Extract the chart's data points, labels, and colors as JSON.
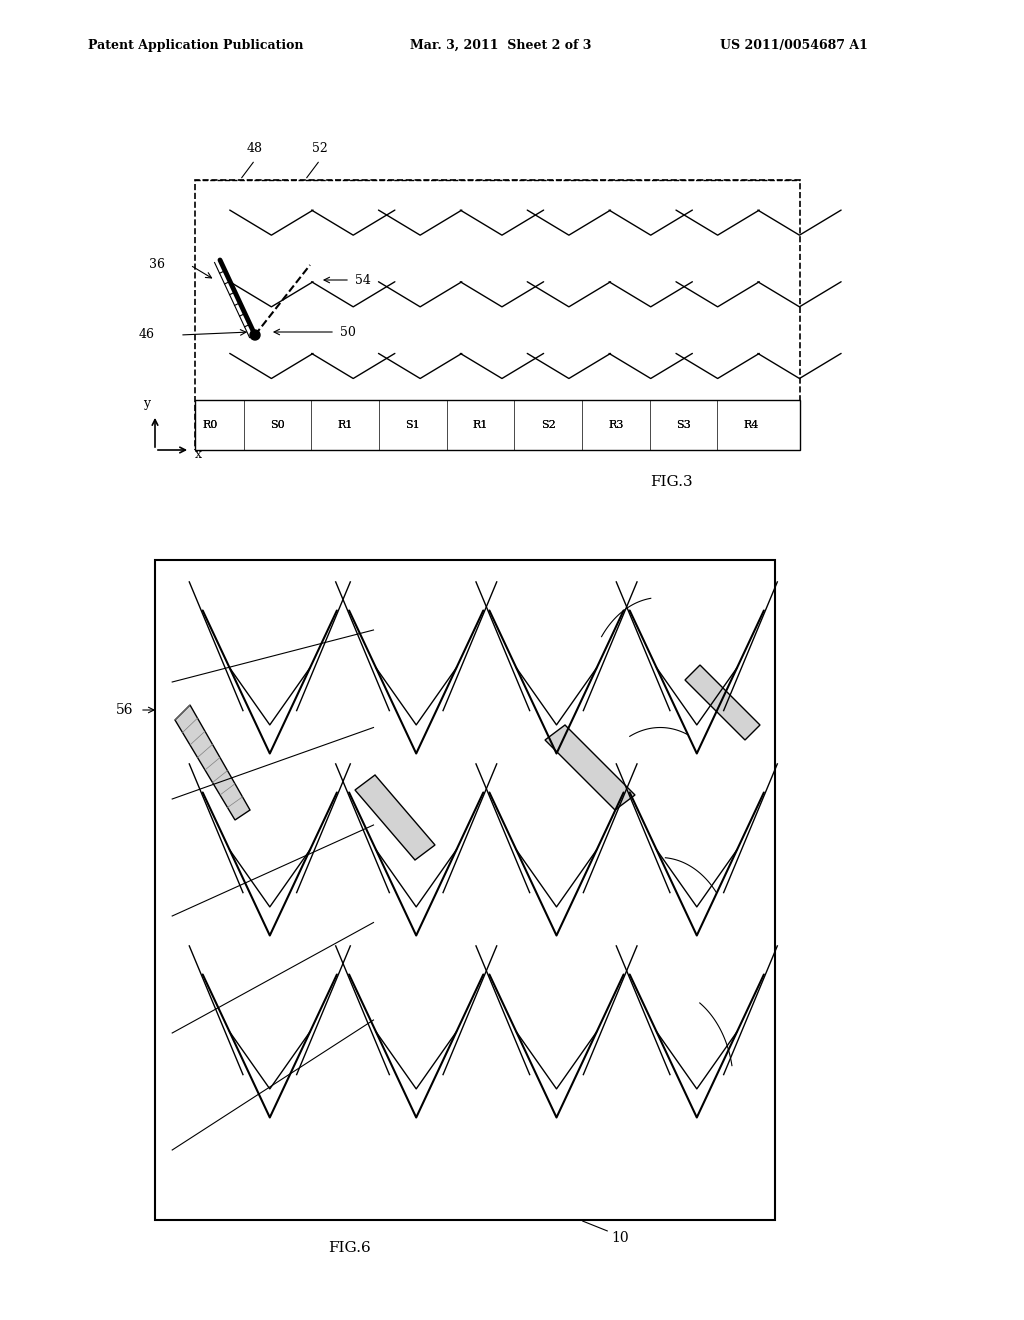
{
  "bg_color": "#ffffff",
  "header_left": "Patent Application Publication",
  "header_center": "Mar. 3, 2011  Sheet 2 of 3",
  "header_right": "US 2011/0054687 A1",
  "fig3_label": "FIG.3",
  "fig6_label": "FIG.6",
  "label_36": "36",
  "label_46": "46",
  "label_48": "48",
  "label_50": "50",
  "label_52": "52",
  "label_54": "54",
  "label_56": "56",
  "label_10": "10",
  "col_labels": [
    "R0",
    "S0",
    "R1",
    "S1",
    "R1",
    "S2",
    "R3",
    "S3",
    "R4"
  ],
  "axis_x_label": "x",
  "axis_y_label": "y"
}
